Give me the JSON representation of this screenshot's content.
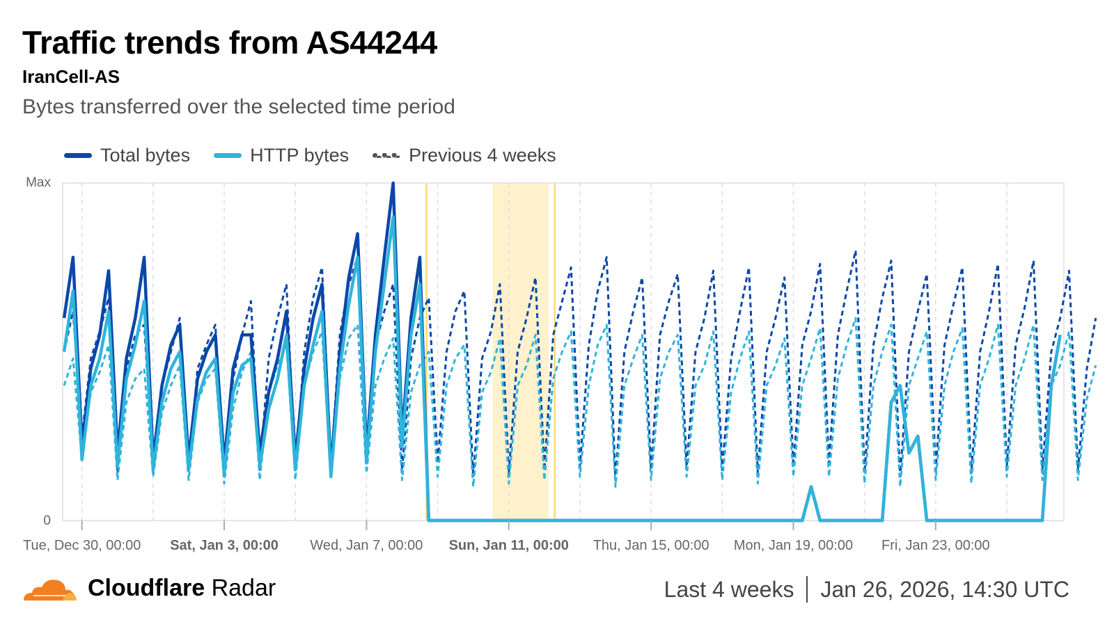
{
  "header": {
    "title": "Traffic trends from AS44244",
    "subtitle": "IranCell-AS",
    "description": "Bytes transferred over the selected time period"
  },
  "footer": {
    "brand_bold": "Cloudflare",
    "brand_light": "Radar",
    "range": "Last 4 weeks",
    "timestamp": "Jan 26, 2026, 14:30 UTC"
  },
  "colors": {
    "total": "#0A47A9",
    "http": "#2FB4DB",
    "previous": "#555555",
    "annotation": "#FFE8A8",
    "annotation_line": "#FFD970",
    "grid": "#dddddd"
  },
  "chart_data": {
    "type": "line",
    "title": "Traffic trends from AS44244",
    "xlabel": "",
    "ylabel": "",
    "y_tick_labels": [
      "Max",
      "0"
    ],
    "ylim": [
      0,
      100
    ],
    "x_unit": "hours since Dec 29, 00:00 UTC",
    "xlim": [
      11,
      686.5
    ],
    "x_start": 12,
    "x_step": 6,
    "x_ticks": [
      {
        "hours": 24,
        "label": "Tue, Dec 30, 00:00",
        "bold": false
      },
      {
        "hours": 120,
        "label": "Sat, Jan 3, 00:00",
        "bold": true
      },
      {
        "hours": 216,
        "label": "Wed, Jan 7, 00:00",
        "bold": false
      },
      {
        "hours": 312,
        "label": "Sun, Jan 11, 00:00",
        "bold": true
      },
      {
        "hours": 408,
        "label": "Thu, Jan 15, 00:00",
        "bold": false
      },
      {
        "hours": 504,
        "label": "Mon, Jan 19, 00:00",
        "bold": false
      },
      {
        "hours": 600,
        "label": "Fri, Jan 23, 00:00",
        "bold": false
      }
    ],
    "legend": [
      {
        "name": "Total bytes",
        "style": "solid",
        "color": "#0A47A9"
      },
      {
        "name": "HTTP bytes",
        "style": "solid",
        "color": "#2FB4DB"
      },
      {
        "name": "Previous 4 weeks",
        "style": "dashed",
        "color": "#555555"
      }
    ],
    "annotations": [
      {
        "type": "line",
        "hours": 256.5
      },
      {
        "type": "band",
        "from": 301,
        "to": 339
      },
      {
        "type": "line",
        "hours": 343
      }
    ],
    "series": [
      {
        "name": "Previous 4 weeks (Total)",
        "color": "#0A47A9",
        "dashed": true,
        "values": [
          50,
          62,
          25,
          48,
          56,
          66,
          14,
          45,
          55,
          58,
          16,
          40,
          50,
          60,
          15,
          45,
          52,
          58,
          14,
          42,
          55,
          65,
          15,
          48,
          60,
          70,
          15,
          50,
          66,
          75,
          16,
          55,
          70,
          78,
          18,
          52,
          62,
          70,
          15,
          48,
          60,
          66,
          17,
          50,
          62,
          68,
          13,
          48,
          56,
          70,
          14,
          50,
          60,
          72,
          15,
          55,
          65,
          75,
          16,
          52,
          68,
          78,
          12,
          50,
          62,
          72,
          15,
          55,
          65,
          73,
          16,
          50,
          60,
          74,
          15,
          48,
          62,
          75,
          14,
          50,
          60,
          72,
          16,
          52,
          62,
          76,
          17,
          55,
          68,
          80,
          14,
          52,
          66,
          77,
          13,
          50,
          62,
          73,
          15,
          52,
          64,
          75,
          14,
          50,
          62,
          76,
          16,
          52,
          63,
          77,
          15,
          50,
          60,
          74,
          15,
          45,
          60
        ]
      },
      {
        "name": "Previous 4 weeks (HTTP)",
        "color": "#2FB4DB",
        "dashed": true,
        "values": [
          40,
          48,
          18,
          38,
          44,
          52,
          12,
          35,
          42,
          45,
          13,
          32,
          40,
          46,
          12,
          35,
          42,
          45,
          11,
          33,
          44,
          50,
          12,
          38,
          46,
          52,
          12,
          40,
          50,
          56,
          13,
          42,
          54,
          58,
          14,
          40,
          48,
          54,
          12,
          38,
          46,
          50,
          13,
          40,
          48,
          52,
          10,
          38,
          44,
          54,
          11,
          40,
          46,
          55,
          12,
          42,
          50,
          56,
          13,
          40,
          52,
          58,
          10,
          40,
          48,
          55,
          12,
          42,
          50,
          55,
          13,
          40,
          46,
          56,
          12,
          38,
          48,
          56,
          11,
          40,
          46,
          54,
          13,
          40,
          48,
          57,
          13,
          42,
          52,
          60,
          11,
          40,
          50,
          58,
          10,
          40,
          48,
          56,
          12,
          40,
          50,
          57,
          11,
          40,
          48,
          58,
          13,
          40,
          48,
          58,
          12,
          40,
          46,
          56,
          12,
          36,
          46
        ]
      },
      {
        "name": "Total bytes",
        "color": "#0A47A9",
        "dashed": false,
        "values": [
          60,
          78,
          22,
          45,
          55,
          74,
          20,
          48,
          60,
          78,
          18,
          40,
          52,
          58,
          18,
          42,
          50,
          55,
          17,
          45,
          55,
          55,
          20,
          38,
          48,
          62,
          18,
          45,
          60,
          70,
          15,
          50,
          72,
          85,
          20,
          55,
          78,
          100,
          25,
          60,
          78,
          0,
          0,
          0,
          0,
          0,
          0,
          0,
          0,
          0,
          0,
          0,
          0,
          0,
          0,
          0,
          0,
          0,
          0,
          0,
          0,
          0,
          0,
          0,
          0,
          0,
          0,
          0,
          0,
          0,
          0,
          0,
          0,
          0,
          0,
          0,
          0,
          0,
          0,
          0,
          0,
          0,
          0,
          0,
          10,
          0,
          0,
          0,
          0,
          0,
          0,
          0,
          0,
          35,
          40,
          20,
          25,
          0,
          0,
          0,
          0,
          0,
          0,
          0,
          0,
          0,
          0,
          0,
          0,
          0,
          0,
          40,
          55
        ]
      },
      {
        "name": "HTTP bytes",
        "color": "#2FB4DB",
        "dashed": false,
        "values": [
          50,
          68,
          18,
          40,
          48,
          62,
          16,
          42,
          52,
          65,
          15,
          35,
          45,
          50,
          15,
          36,
          44,
          48,
          14,
          38,
          46,
          48,
          16,
          33,
          42,
          55,
          15,
          40,
          52,
          62,
          13,
          45,
          64,
          78,
          17,
          50,
          70,
          90,
          22,
          55,
          70,
          0,
          0,
          0,
          0,
          0,
          0,
          0,
          0,
          0,
          0,
          0,
          0,
          0,
          0,
          0,
          0,
          0,
          0,
          0,
          0,
          0,
          0,
          0,
          0,
          0,
          0,
          0,
          0,
          0,
          0,
          0,
          0,
          0,
          0,
          0,
          0,
          0,
          0,
          0,
          0,
          0,
          0,
          0,
          10,
          0,
          0,
          0,
          0,
          0,
          0,
          0,
          0,
          35,
          40,
          20,
          25,
          0,
          0,
          0,
          0,
          0,
          0,
          0,
          0,
          0,
          0,
          0,
          0,
          0,
          0,
          40,
          55
        ]
      }
    ]
  }
}
